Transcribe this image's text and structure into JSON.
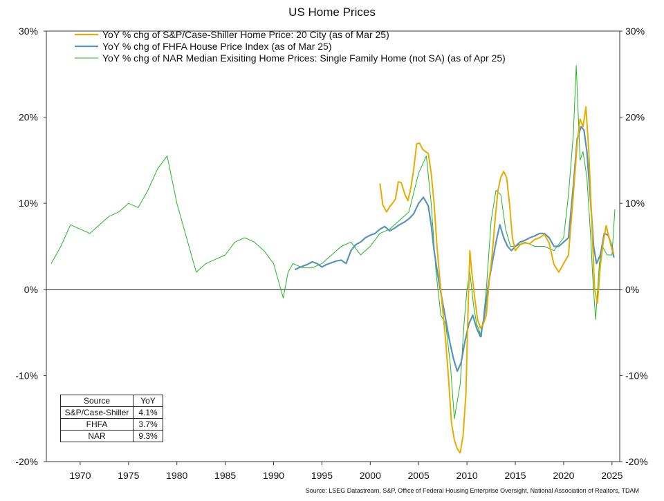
{
  "chart_data": {
    "type": "line",
    "title": "US Home Prices",
    "ylim": [
      -20,
      30
    ],
    "yticks": [
      30,
      20,
      10,
      0,
      -10,
      -20
    ],
    "ytick_labels": [
      "30%",
      "20%",
      "10%",
      "0%",
      "-10%",
      "-20%"
    ],
    "xlim": [
      1966.5,
      2025.8
    ],
    "xticks": [
      1970,
      1975,
      1980,
      1985,
      1990,
      1995,
      2000,
      2005,
      2010,
      2015,
      2020,
      2025
    ],
    "xtick_labels": [
      "1970",
      "1975",
      "1980",
      "1985",
      "1990",
      "1995",
      "2000",
      "2005",
      "2010",
      "2015",
      "2020",
      "2025"
    ],
    "zero_line": true,
    "legend_position": "top-center",
    "source": "Source: LSEG Datastream, S&P, Office of Federal Housing Enterprise Oversight, National Association of Realtors, TDAM",
    "series": [
      {
        "name": "YoY % chg of S&P/Case-Shiller Home Price: 20 City  (as of Mar 25)",
        "color": "#e6ac00",
        "x": [
          2001.0,
          2001.3,
          2001.7,
          2002.0,
          2002.3,
          2002.6,
          2002.9,
          2003.2,
          2003.6,
          2003.9,
          2004.2,
          2004.5,
          2004.8,
          2005.1,
          2005.4,
          2005.7,
          2006.0,
          2006.3,
          2006.6,
          2006.9,
          2007.2,
          2007.5,
          2007.8,
          2008.1,
          2008.4,
          2008.7,
          2009.0,
          2009.3,
          2009.6,
          2009.9,
          2010.1,
          2010.3,
          2010.5,
          2010.8,
          2011.1,
          2011.4,
          2011.7,
          2012.0,
          2012.3,
          2012.6,
          2012.9,
          2013.2,
          2013.5,
          2013.8,
          2014.1,
          2014.4,
          2014.7,
          2015.0,
          2015.5,
          2016.0,
          2016.5,
          2017.0,
          2017.5,
          2018.0,
          2018.5,
          2019.0,
          2019.5,
          2020.0,
          2020.5,
          2021.0,
          2021.4,
          2021.7,
          2022.0,
          2022.3,
          2022.6,
          2022.9,
          2023.2,
          2023.5,
          2023.8,
          2024.1,
          2024.4,
          2024.7,
          2025.0,
          2025.2
        ],
        "values": [
          12.3,
          9.8,
          9.0,
          9.6,
          10.0,
          10.5,
          12.5,
          12.4,
          11.0,
          10.3,
          11.8,
          14.0,
          16.9,
          17.0,
          16.3,
          16.0,
          15.8,
          13.5,
          10.0,
          5.0,
          1.0,
          -2.5,
          -6.0,
          -10.5,
          -15.5,
          -17.5,
          -18.5,
          -19.0,
          -17.0,
          -12.0,
          -3.0,
          4.5,
          2.0,
          -1.0,
          -3.5,
          -4.5,
          -4.0,
          -3.0,
          1.0,
          4.0,
          8.0,
          11.5,
          13.0,
          13.7,
          13.0,
          10.0,
          6.0,
          4.5,
          5.2,
          5.4,
          5.3,
          5.8,
          6.0,
          6.4,
          5.4,
          2.9,
          2.0,
          3.0,
          4.0,
          11.0,
          17.0,
          19.8,
          18.9,
          21.2,
          16.0,
          8.0,
          0.0,
          -1.6,
          2.8,
          5.5,
          7.4,
          6.0,
          4.6,
          4.1
        ]
      },
      {
        "name": "YoY % chg of FHFA House Price Index (as of Mar 25)",
        "color": "#5b93b8",
        "x": [
          1992.2,
          1992.6,
          1993.0,
          1993.5,
          1994.0,
          1994.5,
          1995.0,
          1995.5,
          1996.0,
          1996.5,
          1997.0,
          1997.5,
          1998.0,
          1998.5,
          1999.0,
          1999.5,
          2000.0,
          2000.5,
          2001.0,
          2001.5,
          2002.0,
          2002.5,
          2003.0,
          2003.5,
          2004.0,
          2004.5,
          2005.0,
          2005.5,
          2006.0,
          2006.3,
          2006.6,
          2007.0,
          2007.4,
          2007.8,
          2008.2,
          2008.6,
          2009.0,
          2009.4,
          2009.8,
          2010.2,
          2010.6,
          2011.0,
          2011.4,
          2011.8,
          2012.2,
          2012.6,
          2013.0,
          2013.4,
          2013.8,
          2014.2,
          2014.6,
          2015.0,
          2015.5,
          2016.0,
          2016.5,
          2017.0,
          2017.5,
          2018.0,
          2018.5,
          2019.0,
          2019.5,
          2020.0,
          2020.5,
          2021.0,
          2021.4,
          2021.8,
          2022.1,
          2022.4,
          2022.8,
          2023.1,
          2023.4,
          2023.8,
          2024.2,
          2024.6,
          2025.0,
          2025.2
        ],
        "values": [
          2.3,
          2.5,
          2.7,
          2.9,
          3.2,
          3.0,
          2.6,
          2.9,
          3.1,
          3.3,
          3.4,
          3.0,
          4.5,
          5.2,
          5.5,
          6.0,
          6.3,
          6.5,
          7.0,
          7.3,
          6.8,
          7.1,
          7.5,
          7.8,
          8.2,
          8.8,
          10.0,
          10.7,
          9.7,
          7.5,
          4.5,
          1.5,
          -1.0,
          -3.5,
          -6.0,
          -8.0,
          -9.5,
          -8.5,
          -6.0,
          -4.0,
          -3.0,
          -4.5,
          -5.5,
          -3.0,
          0.5,
          3.0,
          5.5,
          7.5,
          6.0,
          5.0,
          4.5,
          5.0,
          5.5,
          5.7,
          6.0,
          6.2,
          6.5,
          6.5,
          6.0,
          5.0,
          5.0,
          5.5,
          6.0,
          12.0,
          17.5,
          18.9,
          18.5,
          16.0,
          10.0,
          5.0,
          3.0,
          4.0,
          6.5,
          6.3,
          5.0,
          3.7
        ]
      },
      {
        "name": "YoY % chg of NAR Median Exisiting Home Prices: Single Family Home (not SA) (as of Apr 25)",
        "color": "#22b522",
        "x": [
          1967.0,
          1968.0,
          1969.0,
          1970.0,
          1971.0,
          1972.0,
          1973.0,
          1974.0,
          1975.0,
          1976.0,
          1977.0,
          1978.0,
          1979.0,
          1980.0,
          1981.0,
          1982.0,
          1983.0,
          1984.0,
          1985.0,
          1986.0,
          1987.0,
          1988.0,
          1989.0,
          1990.0,
          1990.5,
          1991.0,
          1991.5,
          1992.0,
          1993.0,
          1994.0,
          1995.0,
          1996.0,
          1997.0,
          1998.0,
          1999.0,
          2000.0,
          2001.0,
          2002.0,
          2003.0,
          2004.0,
          2005.0,
          2005.8,
          2006.3,
          2006.8,
          2007.3,
          2007.8,
          2008.3,
          2008.7,
          2009.0,
          2009.3,
          2009.7,
          2010.0,
          2010.3,
          2010.7,
          2011.0,
          2011.5,
          2012.0,
          2012.5,
          2013.0,
          2013.5,
          2014.0,
          2014.5,
          2015.0,
          2016.0,
          2017.0,
          2018.0,
          2019.0,
          2020.0,
          2020.5,
          2021.0,
          2021.3,
          2021.7,
          2022.0,
          2022.4,
          2022.8,
          2023.0,
          2023.3,
          2023.7,
          2024.0,
          2024.5,
          2025.0,
          2025.3
        ],
        "values": [
          3.0,
          5.0,
          7.5,
          7.0,
          6.5,
          7.5,
          8.5,
          9.0,
          10.0,
          9.5,
          11.5,
          14.0,
          15.5,
          10.0,
          6.0,
          2.0,
          3.0,
          3.5,
          4.0,
          5.5,
          6.0,
          5.5,
          4.5,
          3.0,
          1.0,
          -1.0,
          2.0,
          3.0,
          2.5,
          2.5,
          3.0,
          4.0,
          5.0,
          5.5,
          4.0,
          5.0,
          6.5,
          7.0,
          8.0,
          9.0,
          13.5,
          15.5,
          10.0,
          2.0,
          -3.0,
          -4.0,
          -9.0,
          -15.0,
          -13.0,
          -11.0,
          -4.0,
          0.0,
          2.0,
          -2.0,
          -4.0,
          -5.5,
          0.0,
          8.0,
          11.5,
          11.0,
          7.0,
          5.0,
          5.0,
          5.5,
          5.0,
          5.0,
          4.5,
          6.0,
          11.0,
          18.0,
          26.0,
          15.0,
          16.0,
          13.0,
          6.0,
          1.5,
          -3.5,
          3.0,
          5.0,
          4.0,
          4.0,
          9.3
        ]
      }
    ]
  },
  "summary_table": {
    "headers": [
      "Source",
      "YoY"
    ],
    "rows": [
      {
        "source": "S&P/Case-Shiller",
        "yoy": "4.1%"
      },
      {
        "source": "FHFA",
        "yoy": "3.7%"
      },
      {
        "source": "NAR",
        "yoy": "9.3%"
      }
    ]
  }
}
